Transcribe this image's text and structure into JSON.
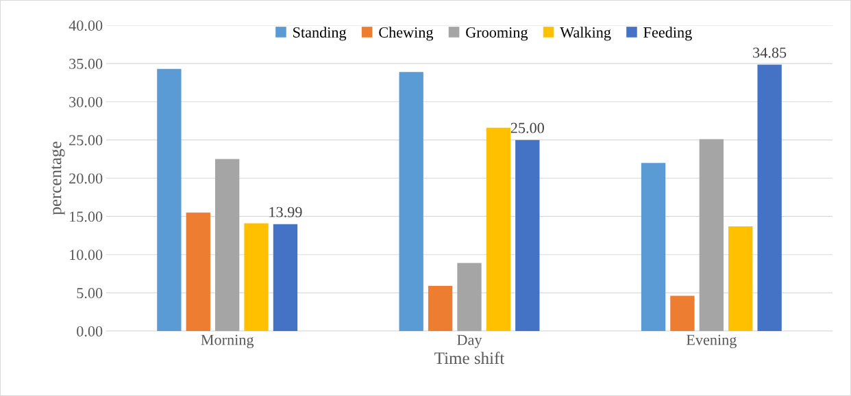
{
  "chart_data": {
    "type": "bar",
    "xlabel": "Time shift",
    "ylabel": "percentage",
    "categories": [
      "Morning",
      "Day",
      "Evening"
    ],
    "series": [
      {
        "name": "Standing",
        "color": "#5b9bd5",
        "values": [
          34.3,
          33.9,
          22.0
        ]
      },
      {
        "name": "Chewing",
        "color": "#ed7d31",
        "values": [
          15.5,
          5.9,
          4.6
        ]
      },
      {
        "name": "Grooming",
        "color": "#a5a5a5",
        "values": [
          22.5,
          8.9,
          25.1
        ]
      },
      {
        "name": "Walking",
        "color": "#ffc000",
        "values": [
          14.1,
          26.6,
          13.7
        ]
      },
      {
        "name": "Feeding",
        "color": "#4472c4",
        "values": [
          13.99,
          25.0,
          34.85
        ],
        "value_labels": [
          "13.99",
          "25.00",
          "34.85"
        ]
      }
    ],
    "ylim": [
      0,
      40
    ],
    "yticks": [
      {
        "value": 0,
        "label": "0.00"
      },
      {
        "value": 5,
        "label": "5.00"
      },
      {
        "value": 10,
        "label": "10.00"
      },
      {
        "value": 15,
        "label": "15.00"
      },
      {
        "value": 20,
        "label": "20.00"
      },
      {
        "value": 25,
        "label": "25.00"
      },
      {
        "value": 30,
        "label": "30.00"
      },
      {
        "value": 35,
        "label": "35.00"
      },
      {
        "value": 40,
        "label": "40.00"
      }
    ],
    "grid": "y",
    "legend": "top"
  }
}
